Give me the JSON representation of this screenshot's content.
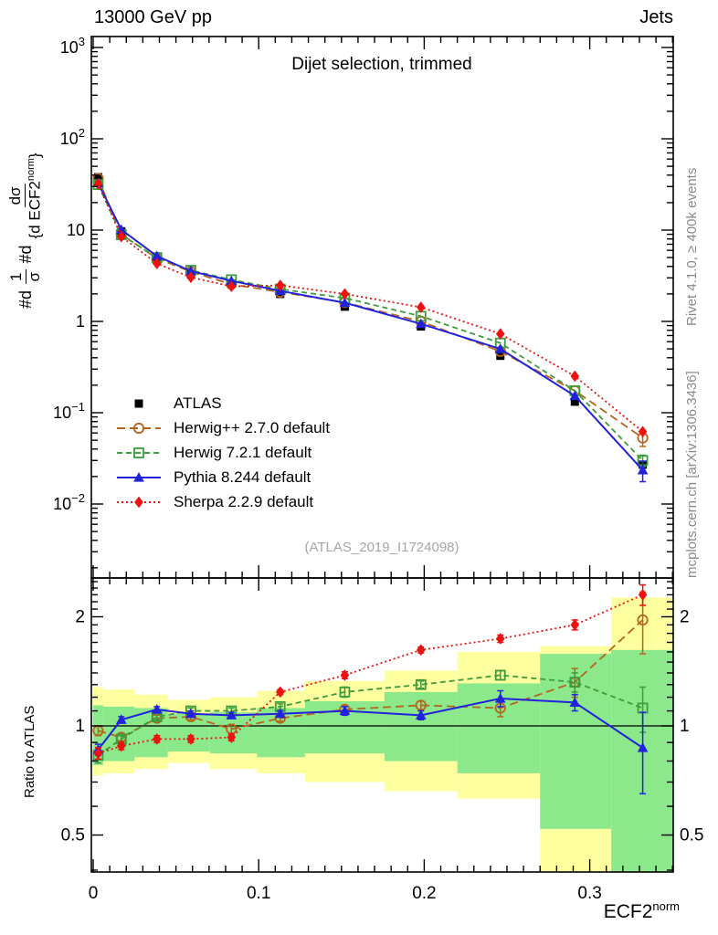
{
  "header": {
    "left": "13000 GeV pp",
    "right": "Jets"
  },
  "panel_title": "Dijet selection, trimmed",
  "watermark": "(ATLAS_2019_I1724098)",
  "side_notes": {
    "top_right": "Rivet 4.1.0, ≥ 400k events",
    "bottom_right": "mcplots.cern.ch [arXiv:1306.3436]"
  },
  "ratio_axis_label": "Ratio to ATLAS",
  "y_axis_label": {
    "prefix1": "#d",
    "frac1_num": "1",
    "frac1_den": "σ",
    "prefix2": "#d",
    "frac2_num": "dσ",
    "frac2_den": "{d ECF2",
    "frac2_den_sup": "norm",
    "frac2_den_close": "}"
  },
  "x_axis_label": {
    "base": "ECF2",
    "sup": "norm"
  },
  "chart_data": {
    "type": "line",
    "title": "Dijet selection, trimmed",
    "xlabel": "ECF2^norm",
    "ylabel": "1/σ dσ/d ECF2^norm",
    "ratio_ylabel": "Ratio to ATLAS",
    "main_y_log": true,
    "ratio_y_log": true,
    "xlim": [
      0,
      0.351
    ],
    "main_ylim": [
      0.0016,
      1300
    ],
    "ratio_ylim": [
      0.39,
      2.56
    ],
    "x": [
      0.003,
      0.017,
      0.0385,
      0.059,
      0.0835,
      0.113,
      0.152,
      0.198,
      0.246,
      0.291,
      0.332
    ],
    "bin_edges": [
      0.0,
      0.006,
      0.025,
      0.045,
      0.0705,
      0.099,
      0.128,
      0.176,
      0.22,
      0.27,
      0.313,
      0.351
    ],
    "x_ticks": {
      "major": [
        0,
        0.1,
        0.2,
        0.3
      ],
      "labels": [
        "0",
        "0.1",
        "0.2",
        "0.3"
      ],
      "minor_step": 0.01
    },
    "main_y_ticks": [
      {
        "v": 1000,
        "mantissa": "10",
        "exp": "3"
      },
      {
        "v": 100,
        "mantissa": "10",
        "exp": "2"
      },
      {
        "v": 10,
        "mantissa": "10",
        "exp": ""
      },
      {
        "v": 1,
        "mantissa": "1",
        "exp": ""
      },
      {
        "v": 0.1,
        "mantissa": "10",
        "exp": "−1"
      },
      {
        "v": 0.01,
        "mantissa": "10",
        "exp": "−2"
      }
    ],
    "ratio_y_ticks": [
      {
        "v": 2,
        "label": "2"
      },
      {
        "v": 1,
        "label": "1"
      },
      {
        "v": 0.5,
        "label": "0.5"
      }
    ],
    "series": [
      {
        "label": "ATLAS",
        "color": "#000000",
        "marker": "square-filled",
        "line": "none",
        "values": [
          38,
          9.7,
          4.7,
          3.3,
          2.6,
          2.0,
          1.45,
          0.88,
          0.42,
          0.132,
          0.027
        ]
      },
      {
        "label": "Herwig++ 2.7.0 default",
        "color": "#b5651d",
        "marker": "circle-open",
        "line": "dashed",
        "values": [
          36.9,
          9.0,
          4.9,
          3.5,
          2.55,
          2.1,
          1.61,
          1.0,
          0.47,
          0.174,
          0.053
        ],
        "ratio": [
          0.97,
          0.93,
          1.05,
          1.06,
          0.98,
          1.05,
          1.11,
          1.14,
          1.12,
          1.32,
          1.96
        ],
        "ratio_err": [
          0.03,
          0.02,
          0.02,
          0.02,
          0.03,
          0.02,
          0.03,
          0.03,
          0.06,
          0.12,
          0.38
        ]
      },
      {
        "label": "Herwig 7.2.1 default",
        "color": "#3c9d3c",
        "marker": "square-open",
        "line": "dashed2",
        "values": [
          31.5,
          8.9,
          5.0,
          3.63,
          2.86,
          2.26,
          1.8,
          1.14,
          0.58,
          0.174,
          0.03
        ],
        "ratio": [
          0.83,
          0.92,
          1.06,
          1.1,
          1.1,
          1.13,
          1.24,
          1.3,
          1.38,
          1.32,
          1.12
        ],
        "ratio_err": [
          0.04,
          0.02,
          0.02,
          0.02,
          0.02,
          0.02,
          0.04,
          0.03,
          0.04,
          0.08,
          0.16
        ]
      },
      {
        "label": "Pythia 8.244 default",
        "color": "#2222dd",
        "marker": "triangle-filled",
        "line": "solid",
        "values": [
          32.7,
          10.1,
          5.2,
          3.56,
          2.78,
          2.16,
          1.6,
          0.94,
          0.5,
          0.153,
          0.0235
        ],
        "ratio": [
          0.86,
          1.04,
          1.11,
          1.08,
          1.07,
          1.08,
          1.1,
          1.07,
          1.19,
          1.16,
          0.87
        ],
        "ratio_err": [
          0.03,
          0.02,
          0.02,
          0.02,
          0.02,
          0.02,
          0.03,
          0.03,
          0.06,
          0.06,
          0.22
        ]
      },
      {
        "label": "Sherpa 2.2.9 default",
        "color": "#ee1111",
        "marker": "diamond-filled",
        "line": "dotted",
        "values": [
          31.9,
          8.5,
          4.3,
          3.04,
          2.42,
          2.48,
          2.0,
          1.43,
          0.73,
          0.251,
          0.062
        ],
        "ratio": [
          0.84,
          0.88,
          0.92,
          0.92,
          0.93,
          1.24,
          1.38,
          1.62,
          1.74,
          1.9,
          2.3
        ],
        "ratio_err": [
          0.03,
          0.02,
          0.02,
          0.02,
          0.02,
          0.02,
          0.03,
          0.03,
          0.04,
          0.06,
          0.15
        ]
      }
    ],
    "uncertainty_bands": {
      "outer_color": "#feff9e",
      "inner_color": "#8be88b",
      "outer_top": [
        1.28,
        1.26,
        1.22,
        1.18,
        1.2,
        1.25,
        1.33,
        1.42,
        1.6,
        1.66,
        2.26
      ],
      "inner_top": [
        1.14,
        1.13,
        1.12,
        1.08,
        1.09,
        1.12,
        1.17,
        1.24,
        1.31,
        1.58,
        1.62
      ],
      "inner_bottom": [
        0.78,
        0.8,
        0.82,
        0.85,
        0.84,
        0.82,
        0.84,
        0.8,
        0.74,
        0.52,
        0.39
      ],
      "outer_bottom": [
        0.73,
        0.74,
        0.76,
        0.79,
        0.76,
        0.74,
        0.7,
        0.66,
        0.63,
        0.39,
        0.39
      ]
    }
  }
}
